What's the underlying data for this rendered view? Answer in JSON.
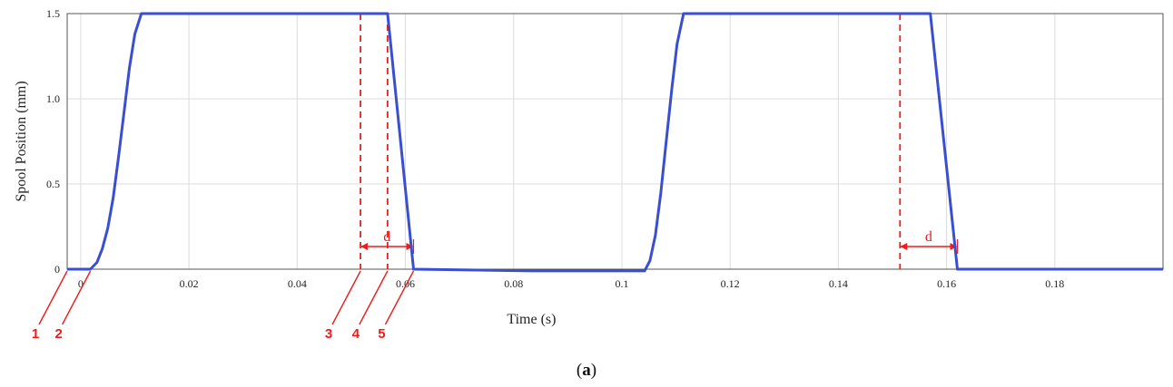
{
  "chart_data": {
    "type": "line",
    "xlabel": "Time (s)",
    "ylabel": "Spool Position (mm)",
    "xlim": [
      -0.0025,
      0.2
    ],
    "ylim": [
      0,
      1.5
    ],
    "x_ticks": [
      0,
      0.02,
      0.04,
      0.06,
      0.08,
      0.1,
      0.12,
      0.14,
      0.16,
      0.18
    ],
    "x_tick_labels": [
      "0",
      "0.02",
      "0.04",
      "0.06",
      "0.08",
      "0.1",
      "0.12",
      "0.14",
      "0.16",
      "0.18"
    ],
    "y_ticks": [
      0,
      0.5,
      1.0,
      1.5
    ],
    "y_tick_labels": [
      "0",
      "0.5",
      "1.0",
      "1.5"
    ],
    "grid": true,
    "series": [
      {
        "color": "#3a4fd0",
        "x": [
          -0.0025,
          0.0018,
          0.003,
          0.004,
          0.005,
          0.006,
          0.007,
          0.008,
          0.009,
          0.01,
          0.0112,
          0.0567,
          0.0615,
          0.0833,
          0.1042,
          0.1052,
          0.1062,
          0.1072,
          0.1082,
          0.1092,
          0.1102,
          0.1114,
          0.157,
          0.162,
          0.2
        ],
        "y": [
          0,
          0,
          0.04,
          0.12,
          0.24,
          0.42,
          0.66,
          0.92,
          1.18,
          1.38,
          1.5,
          1.5,
          0,
          -0.01,
          -0.01,
          0.05,
          0.2,
          0.45,
          0.75,
          1.05,
          1.32,
          1.5,
          1.5,
          0,
          0
        ]
      }
    ],
    "annotations": {
      "color": "#ee1c1c",
      "vlines": [
        0.0517,
        0.0567,
        0.1514
      ],
      "spans": [
        {
          "from": 0.0517,
          "to": 0.0615,
          "label": "d"
        },
        {
          "from": 0.1514,
          "to": 0.162,
          "label": "d"
        }
      ],
      "markers": [
        {
          "label": "1",
          "x": -0.0025
        },
        {
          "label": "2",
          "x": 0.0018
        },
        {
          "label": "3",
          "x": 0.0517
        },
        {
          "label": "4",
          "x": 0.0567
        },
        {
          "label": "5",
          "x": 0.0615
        }
      ]
    },
    "caption": {
      "open": "(",
      "letter": "a",
      "close": ")"
    }
  }
}
